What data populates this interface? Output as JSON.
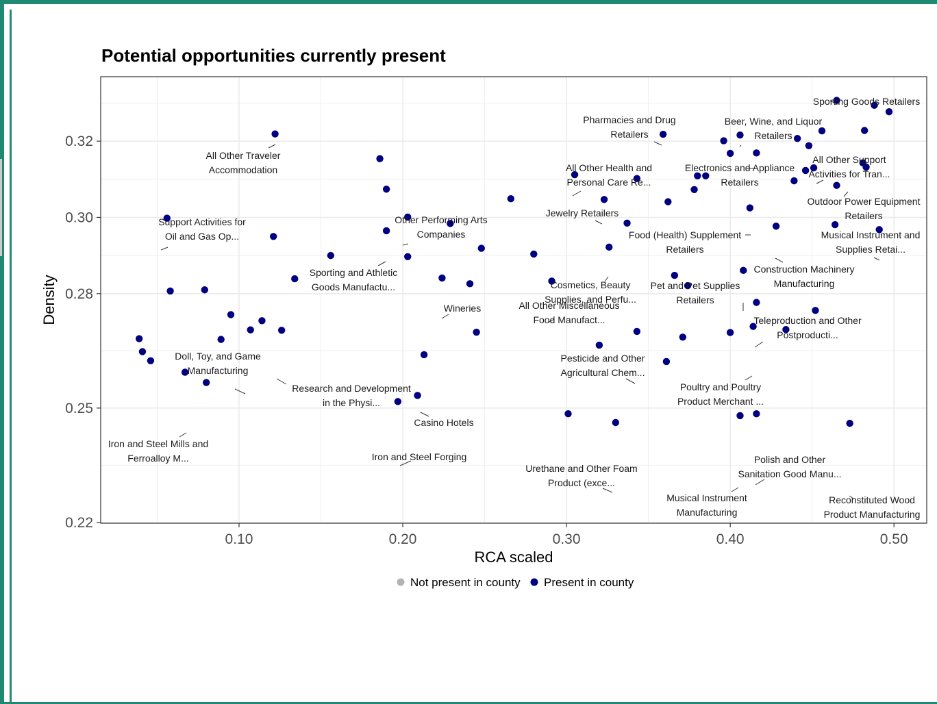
{
  "chart_data": {
    "type": "scatter",
    "title": "Potential opportunities currently present",
    "xlabel": "RCA scaled",
    "ylabel": "Density",
    "xlim": [
      0.0155,
      0.52
    ],
    "ylim": [
      0.2198,
      0.3369
    ],
    "x_ticks": [
      0.1,
      0.2,
      0.3,
      0.4,
      0.5
    ],
    "x_tick_labels": [
      "0.10",
      "0.20",
      "0.30",
      "0.40",
      "0.50"
    ],
    "y_ticks": [
      0.22,
      0.25,
      0.28,
      0.3,
      0.32
    ],
    "y_tick_labels": [
      "0.22",
      "0.25",
      "0.28",
      "0.30",
      "0.32"
    ],
    "grid": true,
    "legend_position": "bottom",
    "legend": [
      {
        "label": "Not present in county",
        "color": "#b3b3b3"
      },
      {
        "label": "Present in county",
        "color": "#000080"
      }
    ],
    "colors": {
      "present": "#000080",
      "not_present": "#b3b3b3",
      "grid": "#ebebeb",
      "panel_border": "#333333"
    },
    "points": [
      {
        "x": 0.122,
        "y": 0.3219
      },
      {
        "x": 0.186,
        "y": 0.3154
      },
      {
        "x": 0.19,
        "y": 0.3074
      },
      {
        "x": 0.056,
        "y": 0.2998
      },
      {
        "x": 0.121,
        "y": 0.295
      },
      {
        "x": 0.19,
        "y": 0.2965
      },
      {
        "x": 0.203,
        "y": 0.3001
      },
      {
        "x": 0.229,
        "y": 0.2984
      },
      {
        "x": 0.266,
        "y": 0.3049
      },
      {
        "x": 0.156,
        "y": 0.29
      },
      {
        "x": 0.203,
        "y": 0.2897
      },
      {
        "x": 0.248,
        "y": 0.2919
      },
      {
        "x": 0.134,
        "y": 0.2839
      },
      {
        "x": 0.058,
        "y": 0.2807
      },
      {
        "x": 0.079,
        "y": 0.281
      },
      {
        "x": 0.095,
        "y": 0.2745
      },
      {
        "x": 0.114,
        "y": 0.2729
      },
      {
        "x": 0.107,
        "y": 0.2705
      },
      {
        "x": 0.126,
        "y": 0.2704
      },
      {
        "x": 0.089,
        "y": 0.268
      },
      {
        "x": 0.039,
        "y": 0.2682
      },
      {
        "x": 0.041,
        "y": 0.2648
      },
      {
        "x": 0.046,
        "y": 0.2624
      },
      {
        "x": 0.067,
        "y": 0.2594
      },
      {
        "x": 0.08,
        "y": 0.2567
      },
      {
        "x": 0.224,
        "y": 0.2841
      },
      {
        "x": 0.241,
        "y": 0.2826
      },
      {
        "x": 0.28,
        "y": 0.2904
      },
      {
        "x": 0.291,
        "y": 0.2833
      },
      {
        "x": 0.245,
        "y": 0.2699
      },
      {
        "x": 0.213,
        "y": 0.264
      },
      {
        "x": 0.209,
        "y": 0.2533
      },
      {
        "x": 0.197,
        "y": 0.2517
      },
      {
        "x": 0.301,
        "y": 0.2485
      },
      {
        "x": 0.33,
        "y": 0.2462
      },
      {
        "x": 0.305,
        "y": 0.3112
      },
      {
        "x": 0.343,
        "y": 0.3102
      },
      {
        "x": 0.323,
        "y": 0.3047
      },
      {
        "x": 0.359,
        "y": 0.3218
      },
      {
        "x": 0.362,
        "y": 0.3041
      },
      {
        "x": 0.337,
        "y": 0.2985
      },
      {
        "x": 0.326,
        "y": 0.2922
      },
      {
        "x": 0.366,
        "y": 0.2848
      },
      {
        "x": 0.374,
        "y": 0.2821
      },
      {
        "x": 0.343,
        "y": 0.2701
      },
      {
        "x": 0.32,
        "y": 0.2665
      },
      {
        "x": 0.361,
        "y": 0.2622
      },
      {
        "x": 0.371,
        "y": 0.2686
      },
      {
        "x": 0.38,
        "y": 0.3109
      },
      {
        "x": 0.385,
        "y": 0.3109
      },
      {
        "x": 0.378,
        "y": 0.3073
      },
      {
        "x": 0.396,
        "y": 0.3201
      },
      {
        "x": 0.4,
        "y": 0.3168
      },
      {
        "x": 0.406,
        "y": 0.3216
      },
      {
        "x": 0.416,
        "y": 0.3169
      },
      {
        "x": 0.412,
        "y": 0.3025
      },
      {
        "x": 0.408,
        "y": 0.2861
      },
      {
        "x": 0.416,
        "y": 0.2777
      },
      {
        "x": 0.414,
        "y": 0.2714
      },
      {
        "x": 0.4,
        "y": 0.2698
      },
      {
        "x": 0.434,
        "y": 0.2706
      },
      {
        "x": 0.428,
        "y": 0.2977
      },
      {
        "x": 0.441,
        "y": 0.3207
      },
      {
        "x": 0.448,
        "y": 0.3188
      },
      {
        "x": 0.456,
        "y": 0.3227
      },
      {
        "x": 0.439,
        "y": 0.3096
      },
      {
        "x": 0.446,
        "y": 0.3123
      },
      {
        "x": 0.451,
        "y": 0.313
      },
      {
        "x": 0.465,
        "y": 0.3307
      },
      {
        "x": 0.488,
        "y": 0.3294
      },
      {
        "x": 0.497,
        "y": 0.3277
      },
      {
        "x": 0.482,
        "y": 0.3228
      },
      {
        "x": 0.481,
        "y": 0.3143
      },
      {
        "x": 0.483,
        "y": 0.3132
      },
      {
        "x": 0.465,
        "y": 0.3084
      },
      {
        "x": 0.464,
        "y": 0.2981
      },
      {
        "x": 0.491,
        "y": 0.2968
      },
      {
        "x": 0.452,
        "y": 0.2756
      },
      {
        "x": 0.406,
        "y": 0.248
      },
      {
        "x": 0.416,
        "y": 0.2485
      },
      {
        "x": 0.473,
        "y": 0.246
      }
    ],
    "annotations": [
      {
        "lines": [
          "All Other Traveler",
          "Accommodation"
        ]
      },
      {
        "lines": [
          "Support Activities for",
          "Oil and Gas Op..."
        ]
      },
      {
        "lines": [
          "Other Performing Arts",
          "Companies"
        ]
      },
      {
        "lines": [
          "Sporting and Athletic",
          "Goods Manufactu..."
        ]
      },
      {
        "lines": [
          "Wineries"
        ]
      },
      {
        "lines": [
          "Doll, Toy, and Game",
          "Manufacturing"
        ]
      },
      {
        "lines": [
          "Research and Development",
          "in the Physi..."
        ]
      },
      {
        "lines": [
          "Casino Hotels"
        ]
      },
      {
        "lines": [
          "Iron and Steel Mills and",
          "Ferroalloy M..."
        ]
      },
      {
        "lines": [
          "Iron and Steel Forging"
        ]
      },
      {
        "lines": [
          "Urethane and Other Foam",
          "Product (exce..."
        ]
      },
      {
        "lines": [
          "Pharmacies and Drug",
          "Retailers"
        ]
      },
      {
        "lines": [
          "All Other Health and",
          "Personal Care Re..."
        ]
      },
      {
        "lines": [
          "Jewelry Retailers"
        ]
      },
      {
        "lines": [
          "Cosmetics, Beauty",
          "Supplies, and Perfu..."
        ]
      },
      {
        "lines": [
          "All Other Miscellaneous",
          "Food Manufact..."
        ]
      },
      {
        "lines": [
          "Pesticide and Other",
          "Agricultural Chem..."
        ]
      },
      {
        "lines": [
          "Food (Health) Supplement",
          "Retailers"
        ]
      },
      {
        "lines": [
          "Pet and Pet Supplies",
          "Retailers"
        ]
      },
      {
        "lines": [
          "Beer, Wine, and Liquor",
          "Retailers"
        ]
      },
      {
        "lines": [
          "Electronics and Appliance",
          "Retailers"
        ]
      },
      {
        "lines": [
          "Sporting Goods Retailers"
        ]
      },
      {
        "lines": [
          "All Other Support",
          "Activities for Tran..."
        ]
      },
      {
        "lines": [
          "Outdoor Power Equipment",
          "Retailers"
        ]
      },
      {
        "lines": [
          "Musical Instrument and",
          "Supplies Retai..."
        ]
      },
      {
        "lines": [
          "Construction Machinery",
          "Manufacturing"
        ]
      },
      {
        "lines": [
          "Teleproduction and Other",
          "Postproducti..."
        ]
      },
      {
        "lines": [
          "Poultry and Poultry",
          "Product Merchant ..."
        ]
      },
      {
        "lines": [
          "Polish and Other",
          "Sanitation Good Manu..."
        ]
      },
      {
        "lines": [
          "Musical Instrument",
          "Manufacturing"
        ]
      },
      {
        "lines": [
          "Reconstituted Wood",
          "Product Manufacturing"
        ]
      }
    ]
  }
}
